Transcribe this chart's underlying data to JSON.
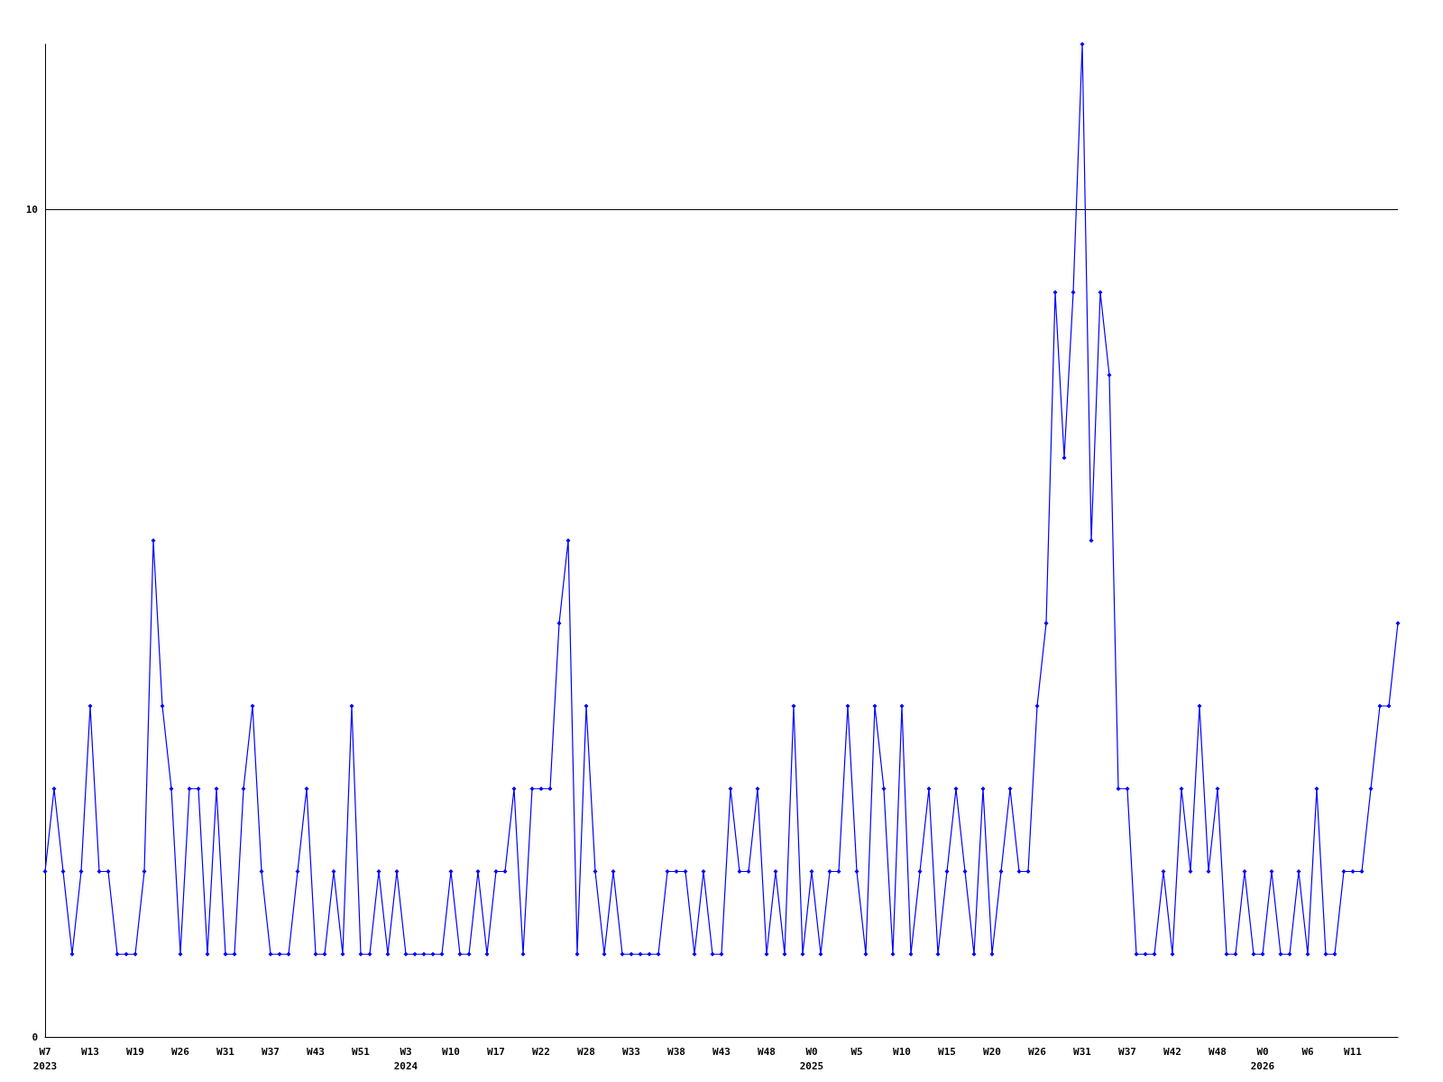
{
  "chart_data": {
    "type": "line",
    "categories": [
      "W7\n2023",
      null,
      null,
      null,
      null,
      "W13",
      null,
      null,
      null,
      null,
      "W19",
      null,
      null,
      null,
      null,
      "W26",
      null,
      null,
      null,
      null,
      "W31",
      null,
      null,
      null,
      null,
      "W37",
      null,
      null,
      null,
      null,
      "W43",
      null,
      null,
      null,
      null,
      "W51",
      null,
      null,
      null,
      null,
      "W3\n2024",
      null,
      null,
      null,
      null,
      "W10",
      null,
      null,
      null,
      null,
      "W17",
      null,
      null,
      null,
      null,
      "W22",
      null,
      null,
      null,
      null,
      "W28",
      null,
      null,
      null,
      null,
      "W33",
      null,
      null,
      null,
      null,
      "W38",
      null,
      null,
      null,
      null,
      "W43",
      null,
      null,
      null,
      null,
      "W48",
      null,
      null,
      null,
      null,
      "W0\n2025",
      null,
      null,
      null,
      null,
      "W5",
      null,
      null,
      null,
      null,
      "W10",
      null,
      null,
      null,
      null,
      "W15",
      null,
      null,
      null,
      null,
      "W20",
      null,
      null,
      null,
      null,
      "W26",
      null,
      null,
      null,
      null,
      "W31",
      null,
      null,
      null,
      null,
      "W37",
      null,
      null,
      null,
      null,
      "W42",
      null,
      null,
      null,
      null,
      "W48",
      null,
      null,
      null,
      null,
      "W0\n2026",
      null,
      null,
      null,
      null,
      "W6",
      null,
      null,
      null,
      null,
      "W11",
      null,
      null,
      null,
      null,
      null
    ],
    "series": [
      {
        "color": "#0000ff",
        "values": [
          2,
          3,
          2,
          1,
          2,
          4,
          2,
          2,
          1,
          1,
          1,
          2,
          6,
          4,
          3,
          1,
          3,
          3,
          1,
          3,
          1,
          1,
          3,
          4,
          2,
          1,
          1,
          1,
          2,
          3,
          1,
          1,
          2,
          1,
          4,
          1,
          1,
          2,
          1,
          2,
          1,
          1,
          1,
          1,
          1,
          2,
          1,
          1,
          2,
          1,
          2,
          2,
          3,
          1,
          3,
          3,
          3,
          5,
          6,
          1,
          4,
          2,
          1,
          2,
          1,
          1,
          1,
          1,
          1,
          2,
          2,
          2,
          1,
          2,
          1,
          1,
          3,
          2,
          2,
          3,
          1,
          2,
          1,
          4,
          1,
          2,
          1,
          2,
          2,
          4,
          2,
          1,
          4,
          3,
          1,
          4,
          1,
          2,
          3,
          1,
          2,
          3,
          2,
          1,
          3,
          1,
          2,
          3,
          2,
          2,
          4,
          5,
          9,
          7,
          9,
          12,
          6,
          9,
          8,
          3,
          3,
          1,
          1,
          1,
          2,
          1,
          3,
          2,
          4,
          2,
          3,
          1,
          1,
          2,
          1,
          1,
          2,
          1,
          1,
          2,
          1,
          3,
          1,
          1,
          2,
          2,
          2,
          3,
          4,
          4,
          5
        ]
      }
    ],
    "ylim": [
      0,
      12
    ],
    "yticks": [
      0,
      10
    ],
    "grid": "y",
    "marker": "diamond",
    "line_style": "solid"
  }
}
